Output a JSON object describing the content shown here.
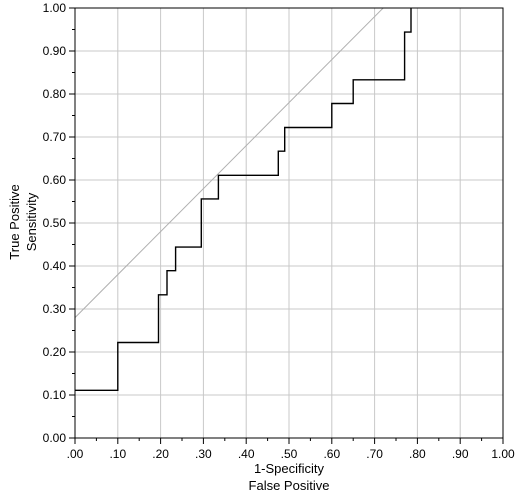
{
  "chart_data": {
    "type": "line",
    "title": "",
    "xlabel": [
      "1-Specificity",
      "False Positive"
    ],
    "ylabel": [
      "True Positive",
      "Sensitivity"
    ],
    "xlim": [
      0,
      1
    ],
    "ylim": [
      0,
      1
    ],
    "grid": true,
    "x_ticks": [
      ".00",
      ".10",
      ".20",
      ".30",
      ".40",
      ".50",
      ".60",
      ".70",
      ".80",
      ".90",
      "1.00"
    ],
    "y_ticks": [
      "0.00",
      "0.10",
      "0.20",
      "0.30",
      "0.40",
      "0.50",
      "0.60",
      "0.70",
      "0.80",
      "0.90",
      "1.00"
    ],
    "colors": {
      "roc": "#000000",
      "reference": "#b0b0b0",
      "grid": "#c8c8c8",
      "frame": "#000000"
    },
    "series": [
      {
        "x": [
          0.0,
          0.1,
          0.1,
          0.195,
          0.195,
          0.215,
          0.215,
          0.235,
          0.235,
          0.295,
          0.295,
          0.335,
          0.335,
          0.475,
          0.475,
          0.49,
          0.49,
          0.6,
          0.6,
          0.65,
          0.65,
          0.77,
          0.77,
          0.785,
          0.785
        ],
        "y": [
          0.111,
          0.111,
          0.222,
          0.222,
          0.333,
          0.333,
          0.389,
          0.389,
          0.444,
          0.444,
          0.556,
          0.556,
          0.611,
          0.611,
          0.667,
          0.667,
          0.722,
          0.722,
          0.778,
          0.778,
          0.833,
          0.833,
          0.944,
          0.944,
          1.0
        ]
      },
      {
        "x": [
          0.0,
          0.72
        ],
        "y": [
          0.28,
          1.0
        ]
      }
    ]
  }
}
